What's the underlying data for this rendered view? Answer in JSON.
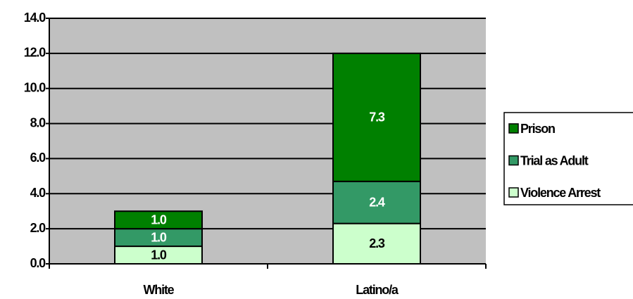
{
  "chart_data": {
    "type": "stacked_bar",
    "categories": [
      "White",
      "Latino/a"
    ],
    "series": [
      {
        "name": "Violence Arrest",
        "color": "#ccffcc",
        "label_color": "#000000",
        "values": [
          1.0,
          2.3
        ],
        "value_labels": [
          "1.0",
          "2.3"
        ]
      },
      {
        "name": "Trial as Adult",
        "color": "#339966",
        "label_color": "#ffffff",
        "values": [
          1.0,
          2.4
        ],
        "value_labels": [
          "1.0",
          "2.4"
        ]
      },
      {
        "name": "Prison",
        "color": "#008000",
        "label_color": "#ffffff",
        "values": [
          1.0,
          7.3
        ],
        "value_labels": [
          "1.0",
          "7.3"
        ]
      }
    ],
    "ylim": [
      0,
      14
    ],
    "yticks": [
      {
        "value": 0,
        "label": "0.0"
      },
      {
        "value": 2,
        "label": "2.0"
      },
      {
        "value": 4,
        "label": "4.0"
      },
      {
        "value": 6,
        "label": "6.0"
      },
      {
        "value": 8,
        "label": "8.0"
      },
      {
        "value": 10,
        "label": "10.0"
      },
      {
        "value": 12,
        "label": "12.0"
      },
      {
        "value": 14,
        "label": "14.0"
      }
    ],
    "grid": true,
    "plot_background": "#c0c0c0",
    "legend": "right"
  }
}
